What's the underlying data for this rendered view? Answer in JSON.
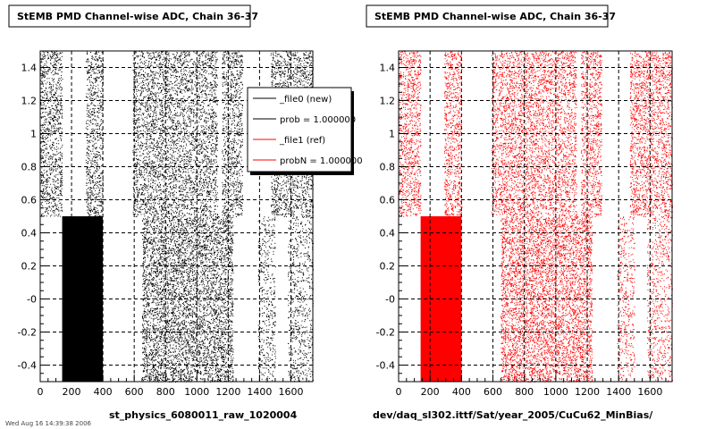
{
  "chart_data": [
    {
      "type": "scatter",
      "title": "StEMB PMD Channel-wise ADC, Chain 36-37",
      "xlabel": "st_physics_6080011_raw_1020004",
      "xlim": [
        0,
        1740
      ],
      "ylim": [
        -0.5,
        1.5
      ],
      "xticks": [
        "0",
        "200",
        "400",
        "600",
        "800",
        "1000",
        "1200",
        "1400",
        "1600"
      ],
      "yticks": [
        "-0.4",
        "-0.2",
        "-0",
        "0.2",
        "0.4",
        "0.6",
        "0.8",
        "1",
        "1.2",
        "1.4"
      ],
      "series": [
        {
          "name": "_file0 (new)",
          "color": "#000000",
          "upper_bands_y": [
            0.5,
            1.5
          ],
          "upper_bands_x": [
            [
              0,
              140
            ],
            [
              290,
              400
            ],
            [
              590,
              1130
            ],
            [
              1160,
              1290
            ],
            [
              1470,
              1740
            ]
          ],
          "lower_bands_y": [
            -0.5,
            0.5
          ],
          "lower_solid_x": [
            [
              140,
              400
            ]
          ],
          "lower_dense_x": [
            [
              650,
              1230
            ]
          ],
          "lower_sparse_x": [
            [
              1390,
              1500
            ],
            [
              1580,
              1740
            ]
          ]
        }
      ],
      "legend": {
        "position": "top-right",
        "entries": [
          {
            "label": "_file0 (new)",
            "color": "#000000"
          },
          {
            "label": "prob = 1.000000",
            "color": "#000000"
          },
          {
            "label": "_file1 (ref)",
            "color": "#ff0000"
          },
          {
            "label": "probN = 1.000000",
            "color": "#ff0000"
          }
        ]
      },
      "grid": "x and y dashed"
    },
    {
      "type": "scatter",
      "title": "StEMB PMD Channel-wise ADC, Chain 36-37",
      "xlabel": "dev/daq_sl302.ittf/Sat/year_2005/CuCu62_MinBias/",
      "xlim": [
        0,
        1740
      ],
      "ylim": [
        -0.5,
        1.5
      ],
      "xticks": [
        "0",
        "200",
        "400",
        "600",
        "800",
        "1000",
        "1200",
        "1400",
        "1600"
      ],
      "yticks": [
        "-0.4",
        "-0.2",
        "-0",
        "0.2",
        "0.4",
        "0.6",
        "0.8",
        "1",
        "1.2",
        "1.4"
      ],
      "series": [
        {
          "name": "_file1 (ref)",
          "color": "#ff0000",
          "upper_bands_y": [
            0.5,
            1.5
          ],
          "upper_bands_x": [
            [
              0,
              140
            ],
            [
              290,
              400
            ],
            [
              590,
              1130
            ],
            [
              1160,
              1290
            ],
            [
              1470,
              1740
            ]
          ],
          "lower_bands_y": [
            -0.5,
            0.5
          ],
          "lower_solid_x": [
            [
              140,
              400
            ]
          ],
          "lower_dense_x": [
            [
              650,
              1230
            ]
          ],
          "lower_sparse_x": [
            [
              1390,
              1500
            ],
            [
              1580,
              1740
            ]
          ]
        }
      ],
      "grid": "x and y dashed"
    }
  ],
  "footer_stamp": "Wed Aug 16 14:39:38 2006"
}
